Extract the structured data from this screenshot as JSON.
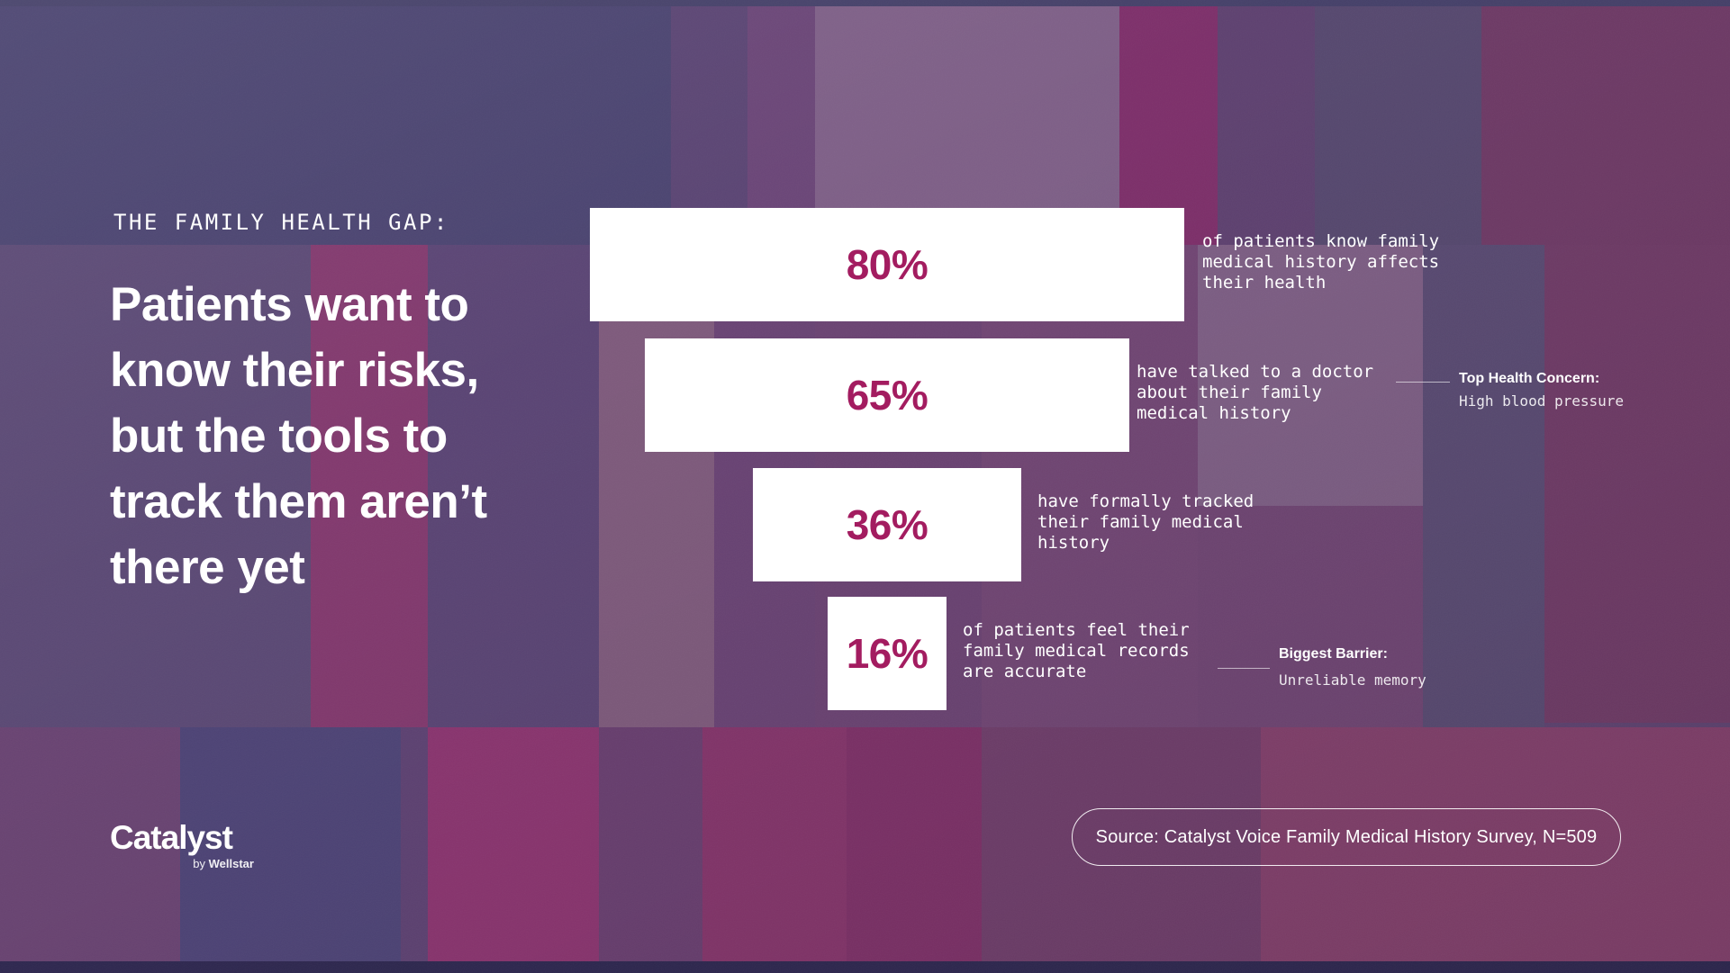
{
  "header": {
    "eyebrow": "THE FAMILY HEALTH GAP:",
    "headline_lines": [
      "Patients want to",
      "know their risks,",
      "but the tools to",
      "track them aren’t",
      "there yet"
    ],
    "headline_text": "Patients want to know their risks, but the tools to track them aren’t there yet"
  },
  "chart_data": {
    "type": "bar",
    "subtype": "horizontal-centered-funnel",
    "unit": "%",
    "values": [
      80,
      65,
      36,
      16
    ],
    "categories": [
      "of patients know family medical history affects their health",
      "have talked to a doctor about their family medical history",
      "have formally tracked their family medical history",
      "of patients feel their family medical records are accurate"
    ],
    "bar_color": "#ffffff",
    "value_color": "#a31c60",
    "bars": [
      {
        "label": "80%",
        "value": 80,
        "description": "of patients know family\nmedical history affects\ntheir health"
      },
      {
        "label": "65%",
        "value": 65,
        "description": "have talked to a doctor\nabout their family\nmedical history",
        "annotation": {
          "title": "Top Health Concern:",
          "value": "High blood pressure"
        }
      },
      {
        "label": "36%",
        "value": 36,
        "description": "have formally tracked\ntheir family medical\nhistory"
      },
      {
        "label": "16%",
        "value": 16,
        "description": "of patients feel their\nfamily medical records\nare accurate",
        "annotation": {
          "title": "Biggest Barrier:",
          "value": "Unreliable memory"
        }
      }
    ]
  },
  "footer": {
    "logo": {
      "brand": "Catalyst",
      "byline_prefix": "by",
      "byline_brand": "Wellstar"
    },
    "source_text": "Source: Catalyst Voice Family Medical History Survey, N=509"
  },
  "colors": {
    "accent_magenta": "#a31c60",
    "bar_white": "#ffffff",
    "background_base": "#5f4371"
  }
}
